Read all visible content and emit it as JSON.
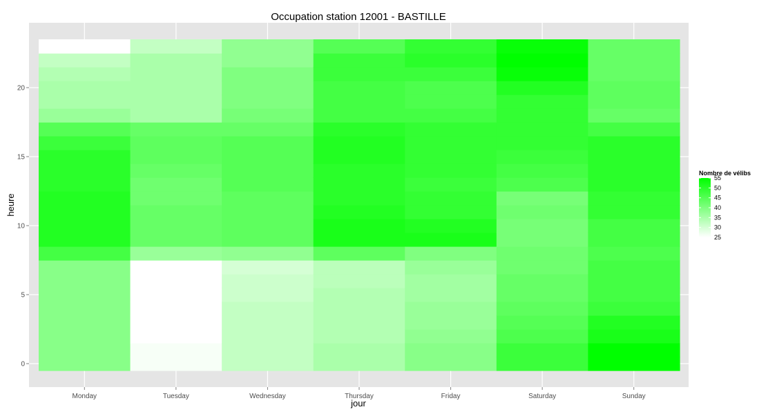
{
  "chart_data": {
    "type": "heatmap",
    "title": "Occupation station 12001 - BASTILLE",
    "xlabel": "jour",
    "ylabel": "heure",
    "x_categories": [
      "Monday",
      "Tuesday",
      "Wednesday",
      "Thursday",
      "Friday",
      "Saturday",
      "Sunday"
    ],
    "y_hours": [
      0,
      1,
      2,
      3,
      4,
      5,
      6,
      7,
      8,
      9,
      10,
      11,
      12,
      13,
      14,
      15,
      16,
      17,
      18,
      19,
      20,
      21,
      22,
      23
    ],
    "y_ticks": [
      0,
      5,
      10,
      15,
      20
    ],
    "ylim": [
      -0.5,
      23.5
    ],
    "values": [
      [
        39,
        39,
        39,
        39,
        39,
        39,
        39,
        39,
        47,
        51,
        51,
        51,
        51,
        50,
        50,
        50,
        48,
        45,
        37,
        35,
        35,
        34,
        32,
        25
      ],
      [
        26,
        26,
        25,
        25,
        25,
        25,
        25,
        25,
        37,
        43,
        43,
        43,
        42,
        42,
        43,
        44,
        44,
        43,
        35,
        35,
        35,
        35,
        35,
        32
      ],
      [
        32,
        32,
        32,
        32,
        32,
        31,
        31,
        30,
        38,
        44,
        44,
        44,
        44,
        45,
        45,
        45,
        45,
        43,
        41,
        40,
        40,
        40,
        38,
        38
      ],
      [
        35,
        35,
        34,
        34,
        34,
        34,
        33,
        33,
        44,
        52,
        52,
        51,
        50,
        50,
        50,
        51,
        51,
        50,
        47,
        47,
        47,
        48,
        48,
        45
      ],
      [
        39,
        39,
        38,
        37,
        37,
        36,
        36,
        37,
        40,
        52,
        51,
        49,
        49,
        48,
        49,
        49,
        49,
        49,
        47,
        46,
        46,
        48,
        50,
        49
      ],
      [
        48,
        48,
        46,
        45,
        44,
        43,
        43,
        42,
        42,
        41,
        41,
        42,
        41,
        46,
        47,
        48,
        49,
        49,
        49,
        49,
        51,
        54,
        55,
        54
      ],
      [
        55,
        55,
        52,
        51,
        48,
        47,
        47,
        47,
        46,
        47,
        47,
        49,
        49,
        50,
        50,
        50,
        50,
        47,
        43,
        44,
        44,
        43,
        43,
        43
      ]
    ],
    "color_scale": {
      "low": "#ffffff",
      "high": "#00ff00",
      "min": 25,
      "max": 55
    },
    "legend": {
      "title": "Nombre de vélibs",
      "breaks": [
        55,
        50,
        45,
        40,
        35,
        30,
        25
      ],
      "position": "right"
    },
    "panel_background": "#e5e5e5",
    "grid": true
  }
}
